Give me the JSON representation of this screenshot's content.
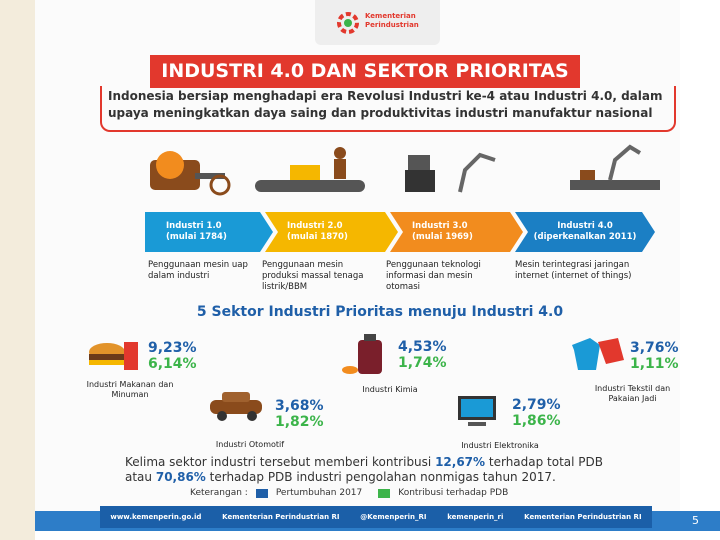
{
  "header": {
    "logo_text": [
      "Kementerian",
      "Perindustrian"
    ],
    "title": "INDUSTRI 4.0 DAN SEKTOR PRIORITAS",
    "subtitle": "Indonesia bersiap menghadapi era Revolusi Industri ke-4 atau Industri 4.0, dalam upaya meningkatkan daya saing dan produktivitas industri manufaktur nasional"
  },
  "stages": [
    {
      "name": "Industri 1.0",
      "period": "(mulai 1784)",
      "desc": "Penggunaan mesin uap dalam industri"
    },
    {
      "name": "Industri 2.0",
      "period": "(mulai 1870)",
      "desc": "Penggunaan mesin produksi massal tenaga listrik/BBM"
    },
    {
      "name": "Industri 3.0",
      "period": "(mulai 1969)",
      "desc": "Penggunaan teknologi informasi dan mesin otomasi"
    },
    {
      "name": "Industri 4.0",
      "period": "(diperkenalkan 2011)",
      "desc": "Mesin terintegrasi jaringan internet (internet of things)"
    }
  ],
  "sectors_title": "5 Sektor Industri Prioritas menuju Industri 4.0",
  "sectors": [
    {
      "name": "Industri Makanan dan Minuman",
      "growth": "9,23%",
      "contribution": "6,14%"
    },
    {
      "name": "Industri Kimia",
      "growth": "4,53%",
      "contribution": "1,74%"
    },
    {
      "name": "Industri Tekstil dan Pakaian Jadi",
      "growth": "3,76%",
      "contribution": "1,11%"
    },
    {
      "name": "Industri Otomotif",
      "growth": "3,68%",
      "contribution": "1,82%"
    },
    {
      "name": "Industri Elektronika",
      "growth": "2,79%",
      "contribution": "1,86%"
    }
  ],
  "summary": [
    "Kelima sektor industri tersebut memberi kontribusi ",
    "12,67%",
    " terhadap total PDB atau ",
    "70,86%",
    " terhadap PDB industri pengolahan nonmigas tahun 2017."
  ],
  "legend": {
    "label": "Keterangan :",
    "items": [
      "Pertumbuhan 2017",
      "Kontribusi terhadap PDB"
    ]
  },
  "footer": [
    "www.kemenperin.go.id",
    "Kementerian Perindustrian RI",
    "@Kemenperin_RI",
    "kemenperin_ri",
    "Kementerian Perindustrian RI"
  ],
  "page_number": "5"
}
